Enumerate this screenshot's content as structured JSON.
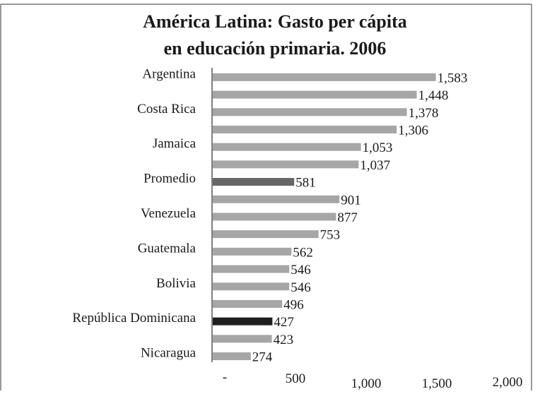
{
  "chart_data": {
    "type": "bar",
    "orientation": "horizontal",
    "title_lines": [
      "América Latina: Gasto per cápita",
      "en educación primaria. 2006"
    ],
    "categories": [
      "Argentina",
      "",
      "Costa Rica",
      "",
      "Jamaica",
      "",
      "Promedio",
      "",
      "Venezuela",
      "",
      "Guatemala",
      "",
      "Bolivia",
      "",
      "República Dominicana",
      "",
      "Nicaragua"
    ],
    "values": [
      1583,
      1448,
      1378,
      1306,
      1053,
      1037,
      581,
      901,
      877,
      753,
      562,
      546,
      546,
      496,
      427,
      423,
      274
    ],
    "value_labels": [
      "1,583",
      "1,448",
      "1,378",
      "1,306",
      "1,053",
      "1,037",
      "581",
      "901",
      "877",
      "753",
      "562",
      "546",
      "546",
      "496",
      "427",
      "423",
      "274"
    ],
    "bar_colors": [
      "#a6a6a6",
      "#a6a6a6",
      "#a6a6a6",
      "#a6a6a6",
      "#a6a6a6",
      "#a6a6a6",
      "#666666",
      "#a6a6a6",
      "#a6a6a6",
      "#a6a6a6",
      "#a6a6a6",
      "#a6a6a6",
      "#a6a6a6",
      "#a6a6a6",
      "#1f1f1f",
      "#a6a6a6",
      "#a6a6a6"
    ],
    "x_ticks": [
      0,
      500,
      1000,
      1500,
      2000
    ],
    "x_tick_labels": [
      "-",
      "500",
      "1,000",
      "1,500",
      "2,000"
    ],
    "xlim": [
      0,
      2000
    ],
    "xlabel": "",
    "ylabel": "",
    "grid": false,
    "legend": "none"
  }
}
